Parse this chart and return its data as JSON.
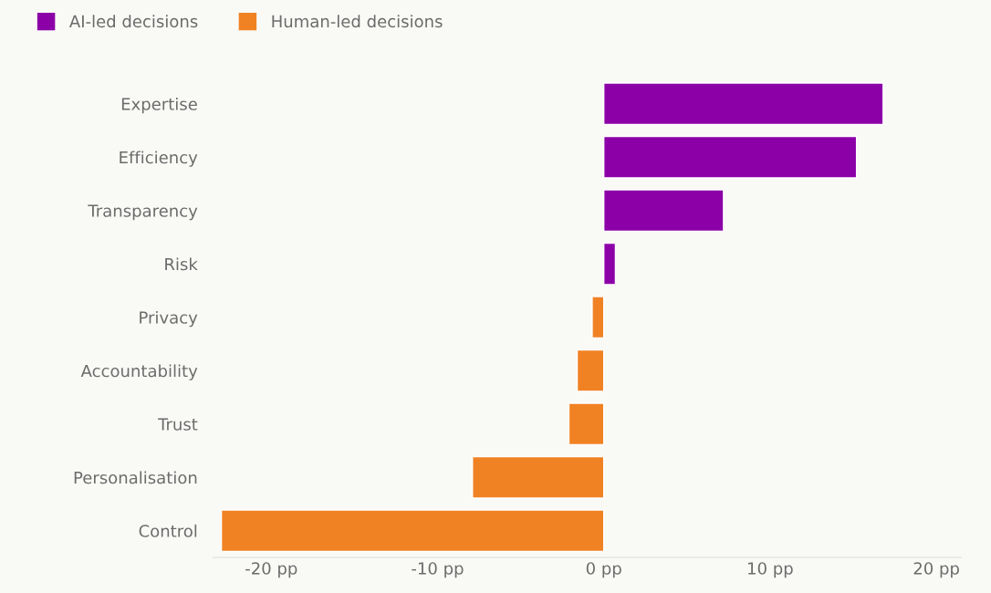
{
  "chart_data": {
    "type": "bar",
    "orientation": "horizontal",
    "categories": [
      "Expertise",
      "Efficiency",
      "Transparency",
      "Risk",
      "Privacy",
      "Accountability",
      "Trust",
      "Personalisation",
      "Control"
    ],
    "series": [
      {
        "name": "AI-led decisions",
        "color": "#8c00a8",
        "values": [
          16.8,
          15.2,
          7.2,
          0.7,
          null,
          null,
          null,
          null,
          null
        ]
      },
      {
        "name": "Human-led decisions",
        "color": "#f08224",
        "values": [
          null,
          null,
          null,
          null,
          -0.7,
          -1.6,
          -2.1,
          -7.9,
          -23.0
        ]
      }
    ],
    "xlim": [
      -23.5,
      21.5
    ],
    "xticks": [
      {
        "value": -20,
        "label": "-20 pp"
      },
      {
        "value": -10,
        "label": "-10 pp"
      },
      {
        "value": 0,
        "label": "0 pp"
      },
      {
        "value": 10,
        "label": "10 pp"
      },
      {
        "value": 20,
        "label": "20 pp"
      }
    ],
    "grid": false,
    "legend": "top left"
  }
}
